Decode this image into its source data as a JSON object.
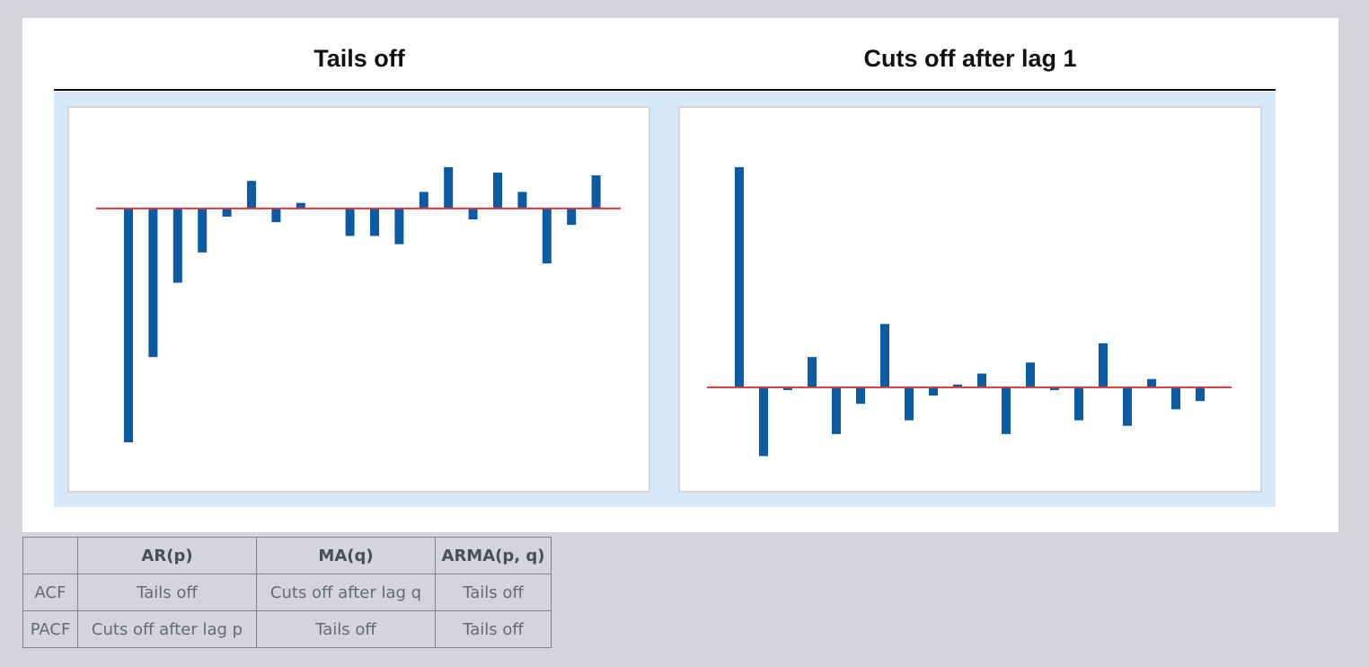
{
  "colors": {
    "bar": "#0b5aa6",
    "zero_line": "#d63a3a",
    "band": "#d5e9f8"
  },
  "chart_data": [
    {
      "type": "bar",
      "title": "Tails off",
      "x": [
        1,
        2,
        3,
        4,
        5,
        6,
        7,
        8,
        9,
        10,
        11,
        12,
        13,
        14,
        15,
        16,
        17,
        18,
        19,
        20,
        21
      ],
      "values": [
        -0.85,
        -0.54,
        -0.27,
        -0.16,
        -0.03,
        0.1,
        -0.05,
        0.02,
        0,
        -0.1,
        -0.1,
        -0.13,
        0.06,
        0.15,
        -0.04,
        0.13,
        0.06,
        -0.2,
        -0.06,
        0.12,
        0
      ],
      "ylim": [
        -1.0,
        0.3
      ],
      "grid": false
    },
    {
      "type": "bar",
      "title": "Cuts off after lag 1",
      "x": [
        1,
        2,
        3,
        4,
        5,
        6,
        7,
        8,
        9,
        10,
        11,
        12,
        13,
        14,
        15,
        16,
        17,
        18,
        19,
        20
      ],
      "values": [
        0.8,
        -0.25,
        -0.01,
        0.11,
        -0.17,
        -0.06,
        0.23,
        -0.12,
        -0.03,
        0.01,
        0.05,
        -0.17,
        0.09,
        -0.01,
        -0.12,
        0.16,
        -0.14,
        0.03,
        -0.08,
        -0.05
      ],
      "ylim": [
        -0.35,
        0.95
      ],
      "grid": false
    }
  ],
  "table": {
    "headers": [
      "",
      "AR(p)",
      "MA(q)",
      "ARMA(p, q)"
    ],
    "rows": [
      [
        "ACF",
        "Tails off",
        "Cuts off after lag q",
        "Tails off"
      ],
      [
        "PACF",
        "Cuts off after lag p",
        "Tails off",
        "Tails off"
      ]
    ]
  }
}
